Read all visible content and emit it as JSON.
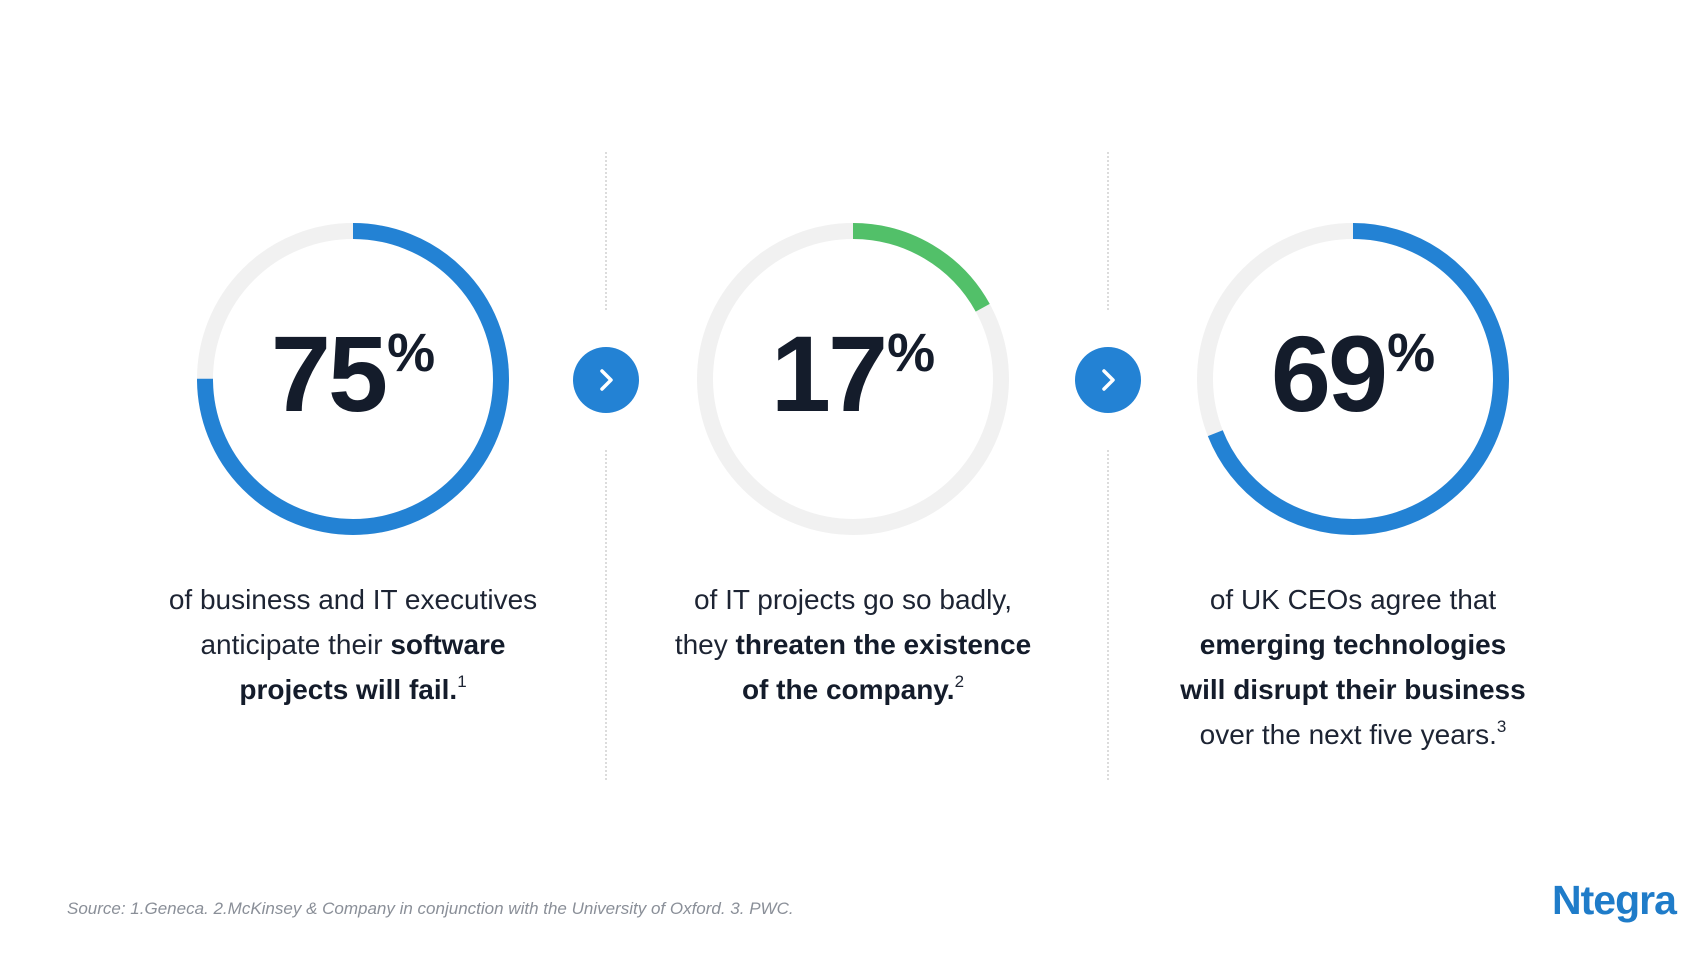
{
  "stats": [
    {
      "value": 75,
      "number": "75",
      "unit": "%",
      "ring_color": "#2382d4",
      "caption": {
        "l1": "of business and IT executives",
        "l2_plain": "anticipate their ",
        "l2_bold": "software",
        "l3_bold": "projects will fail.",
        "l3_sup": "1"
      }
    },
    {
      "value": 17,
      "number": "17",
      "unit": "%",
      "ring_color": "#52c069",
      "caption": {
        "l1": "of IT projects go so badly,",
        "l2_plain": "they ",
        "l2_bold": "threaten the existence",
        "l3_bold": "of the company.",
        "l3_sup": "2"
      }
    },
    {
      "value": 69,
      "number": "69",
      "unit": "%",
      "ring_color": "#2382d4",
      "caption": {
        "l1": "of UK CEOs agree that",
        "l2_bold": "emerging technologies",
        "l3_bold": "will disrupt their business",
        "l4_plain": "over the next five years.",
        "l4_sup": "3"
      }
    }
  ],
  "colors": {
    "ring_track": "#f1f1f1",
    "arrow_button": "#2382d4",
    "text_dark": "#141c2b"
  },
  "arrows": {
    "icon": "chevron-right-icon"
  },
  "footer": {
    "source": "Source: 1.Geneca. 2.McKinsey & Company in conjunction with the University of Oxford. 3. PWC.",
    "logo": "Ntegra"
  }
}
